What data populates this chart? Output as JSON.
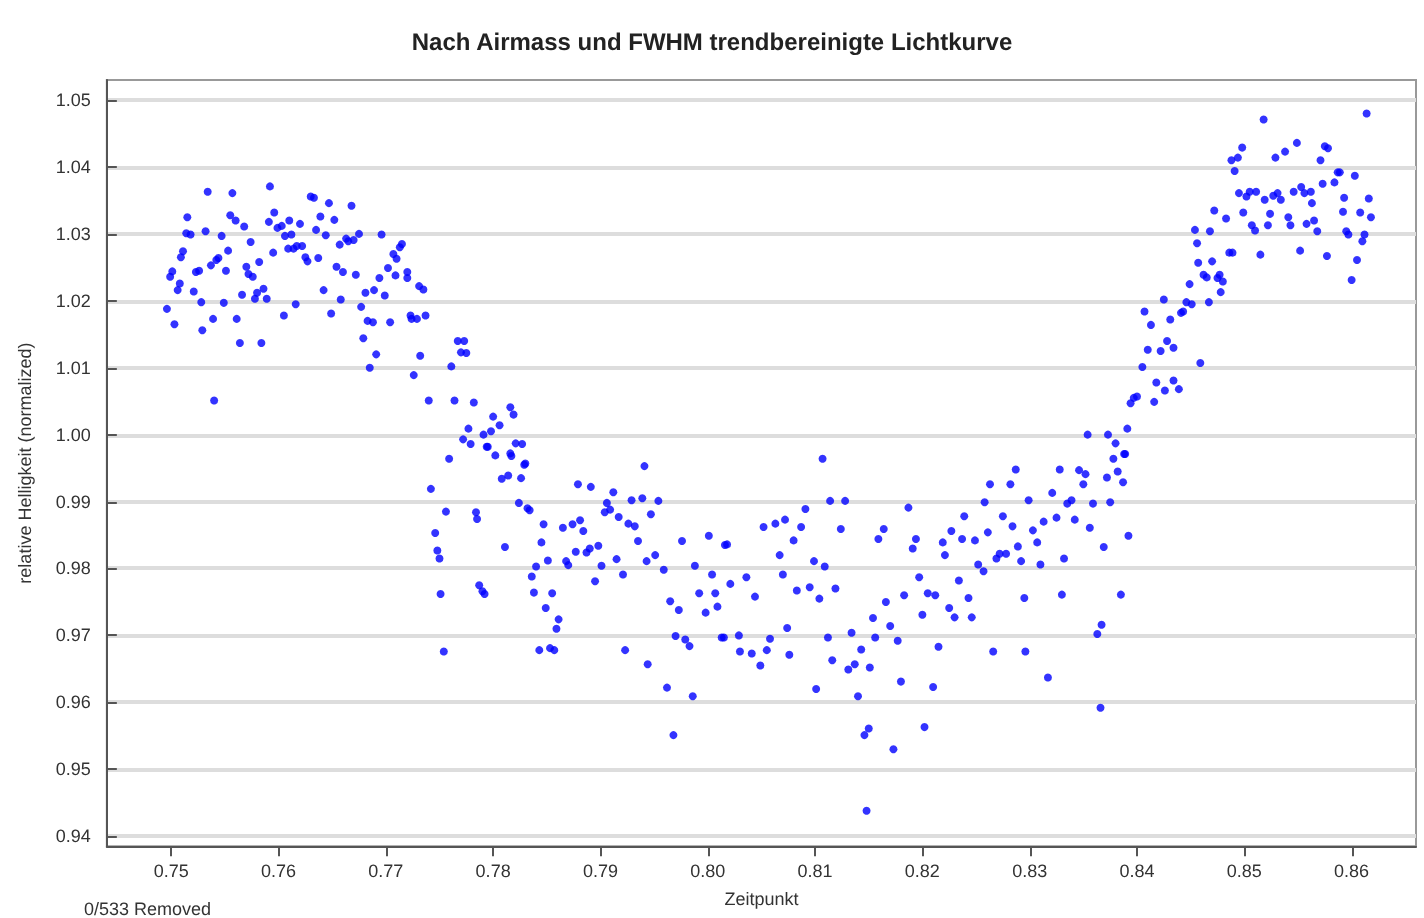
{
  "chart_data": {
    "type": "scatter",
    "title": "Nach Airmass und FWHM trendbereinigte Lichtkurve",
    "xlabel": "Zeitpunkt",
    "ylabel": "relative Helligkeit (normalized)",
    "annotations": [
      "0/533 Removed"
    ],
    "xlim": [
      0.744,
      0.866
    ],
    "ylim": [
      0.9385,
      1.053
    ],
    "xticks": [
      0.75,
      0.76,
      0.77,
      0.78,
      0.79,
      {
        "value": 0.8,
        "label": "0.80"
      },
      0.81,
      0.82,
      0.83,
      0.84,
      0.85,
      0.86
    ],
    "yticks": [
      0.94,
      0.95,
      0.96,
      0.97,
      0.98,
      0.99,
      {
        "value": 1,
        "label": "1.00"
      },
      1.01,
      1.02,
      1.03,
      1.04,
      1.05
    ],
    "grid": "y",
    "marker": "circle",
    "series": [
      {
        "color": "#0000ff",
        "x": [
          0.7496,
          0.7499,
          0.7501,
          0.7503,
          0.7506,
          0.7508,
          0.7509,
          0.7511,
          0.7514,
          0.7515,
          0.7518,
          0.7521,
          0.7523,
          0.7526,
          0.7528,
          0.7529,
          0.7532,
          0.7534,
          0.7537,
          0.7539,
          0.754,
          0.7542,
          0.7544,
          0.7547,
          0.7549,
          0.7551,
          0.7553,
          0.7555,
          0.7557,
          0.756,
          0.7561,
          0.7564,
          0.7566,
          0.7568,
          0.757,
          0.7572,
          0.7574,
          0.7576,
          0.7578,
          0.758,
          0.7582,
          0.7584,
          0.7586,
          0.7589,
          0.7591,
          0.7592,
          0.7595,
          0.7596,
          0.7599,
          0.7603,
          0.7605,
          0.7606,
          0.7609,
          0.761,
          0.7612,
          0.7614,
          0.7616,
          0.7617,
          0.762,
          0.7622,
          0.7625,
          0.7627,
          0.763,
          0.7633,
          0.7635,
          0.7637,
          0.7639,
          0.7642,
          0.7644,
          0.7647,
          0.7649,
          0.7652,
          0.7654,
          0.7657,
          0.7658,
          0.766,
          0.7663,
          0.7665,
          0.7668,
          0.767,
          0.7672,
          0.7675,
          0.7677,
          0.7679,
          0.7681,
          0.7683,
          0.7685,
          0.7688,
          0.7689,
          0.7691,
          0.7694,
          0.7696,
          0.7699,
          0.7702,
          0.7704,
          0.7707,
          0.7709,
          0.771,
          0.7713,
          0.7715,
          0.772,
          0.772,
          0.7723,
          0.7724,
          0.7726,
          0.7729,
          0.7731,
          0.7732,
          0.7735,
          0.7737,
          0.774,
          0.7761,
          0.7767,
          0.777,
          0.7773,
          0.7775,
          0.7764,
          0.7782,
          0.7772,
          0.7777,
          0.7779,
          0.7791,
          0.78,
          0.7806,
          0.7798,
          0.7795,
          0.7819,
          0.7816,
          0.7821,
          0.7827,
          0.7829,
          0.7816,
          0.7742,
          0.7746,
          0.7748,
          0.775,
          0.7751,
          0.7754,
          0.7756,
          0.7759,
          0.7784,
          0.7785,
          0.7787,
          0.779,
          0.7792,
          0.7794,
          0.7802,
          0.7808,
          0.7811,
          0.7814,
          0.7817,
          0.7824,
          0.7826,
          0.783,
          0.7832,
          0.7834,
          0.7836,
          0.7838,
          0.784,
          0.7843,
          0.7845,
          0.7847,
          0.7849,
          0.7851,
          0.7853,
          0.7855,
          0.7857,
          0.7859,
          0.7861,
          0.7865,
          0.7868,
          0.787,
          0.7874,
          0.7877,
          0.7879,
          0.7881,
          0.7884,
          0.7887,
          0.789,
          0.7891,
          0.7895,
          0.7898,
          0.7901,
          0.7904,
          0.7906,
          0.7909,
          0.7912,
          0.7915,
          0.7917,
          0.7921,
          0.7923,
          0.7926,
          0.7929,
          0.7932,
          0.7935,
          0.7939,
          0.7941,
          0.7943,
          0.7944,
          0.7947,
          0.7951,
          0.7954,
          0.7959,
          0.7962,
          0.7965,
          0.7968,
          0.797,
          0.7973,
          0.7976,
          0.7979,
          0.7983,
          0.7986,
          0.7988,
          0.7992,
          0.7998,
          0.8001,
          0.8004,
          0.8007,
          0.8013,
          0.8016,
          0.8021,
          0.8009,
          0.8015,
          0.8018,
          0.8029,
          0.803,
          0.8036,
          0.8041,
          0.8044,
          0.8049,
          0.8052,
          0.8055,
          0.8058,
          0.8063,
          0.8067,
          0.807,
          0.8072,
          0.8074,
          0.8076,
          0.808,
          0.8083,
          0.8087,
          0.8091,
          0.8095,
          0.8099,
          0.8101,
          0.8104,
          0.8107,
          0.8109,
          0.8112,
          0.8114,
          0.8116,
          0.8119,
          0.8124,
          0.8128,
          0.8131,
          0.8134,
          0.8137,
          0.814,
          0.8143,
          0.8146,
          0.8148,
          0.815,
          0.8151,
          0.8154,
          0.8156,
          0.8159,
          0.8164,
          0.8166,
          0.817,
          0.8173,
          0.8177,
          0.818,
          0.8183,
          0.8187,
          0.8191,
          0.8194,
          0.8197,
          0.82,
          0.8202,
          0.8205,
          0.821,
          0.8212,
          0.8215,
          0.8219,
          0.8221,
          0.8225,
          0.8227,
          0.823,
          0.8234,
          0.8237,
          0.8239,
          0.8243,
          0.8246,
          0.8249,
          0.8252,
          0.8257,
          0.8258,
          0.8261,
          0.8263,
          0.8266,
          0.8269,
          0.8272,
          0.8275,
          0.8278,
          0.8282,
          0.8284,
          0.8287,
          0.8289,
          0.8292,
          0.8295,
          0.8296,
          0.8299,
          0.8303,
          0.8307,
          0.831,
          0.8313,
          0.8317,
          0.8321,
          0.8325,
          0.8328,
          0.833,
          0.8332,
          0.8335,
          0.8339,
          0.8342,
          0.8346,
          0.835,
          0.8352,
          0.8356,
          0.8359,
          0.8363,
          0.8366,
          0.8367,
          0.8369,
          0.8372,
          0.8375,
          0.8378,
          0.8382,
          0.8385,
          0.8387,
          0.8389,
          0.8392,
          0.8354,
          0.8373,
          0.838,
          0.8388,
          0.8391,
          0.8394,
          0.8397,
          0.84,
          0.8405,
          0.8407,
          0.841,
          0.8413,
          0.8416,
          0.8418,
          0.8422,
          0.8425,
          0.8426,
          0.8428,
          0.8431,
          0.8434,
          0.8434,
          0.8439,
          0.8441,
          0.8443,
          0.8446,
          0.8449,
          0.8451,
          0.8454,
          0.8456,
          0.8457,
          0.8459,
          0.8462,
          0.8465,
          0.8467,
          0.8468,
          0.847,
          0.8472,
          0.8475,
          0.8477,
          0.8478,
          0.848,
          0.8483,
          0.8486,
          0.8489,
          0.8488,
          0.8491,
          0.8494,
          0.8495,
          0.8498,
          0.8499,
          0.8502,
          0.8505,
          0.8507,
          0.851,
          0.8511,
          0.8515,
          0.8518,
          0.8519,
          0.8522,
          0.8524,
          0.8527,
          0.8529,
          0.8531,
          0.8534,
          0.8538,
          0.8541,
          0.8543,
          0.8546,
          0.8549,
          0.8552,
          0.8553,
          0.8556,
          0.8558,
          0.8562,
          0.8563,
          0.8565,
          0.8568,
          0.8571,
          0.8573,
          0.8575,
          0.8577,
          0.8578,
          0.8584,
          0.8587,
          0.8589,
          0.8592,
          0.8593,
          0.8595,
          0.8597,
          0.86,
          0.8603,
          0.8605,
          0.8608,
          0.861,
          0.8612,
          0.8614,
          0.8616,
          0.8618
        ],
        "values": [
          1.0188,
          1.0236,
          1.0244,
          1.0165,
          1.0216,
          1.0226,
          1.0265,
          1.0274,
          1.0301,
          1.0325,
          1.0299,
          1.0214,
          1.0243,
          1.0245,
          1.0198,
          1.0156,
          1.0304,
          1.0363,
          1.0253,
          1.0173,
          1.0051,
          1.0261,
          1.0264,
          1.0297,
          1.0197,
          1.0245,
          1.0275,
          1.0328,
          1.0361,
          1.032,
          1.0173,
          1.0137,
          1.0209,
          1.0311,
          1.0251,
          1.024,
          1.0288,
          1.0236,
          1.0203,
          1.0212,
          1.0258,
          1.0137,
          1.0218,
          1.0203,
          1.0318,
          1.0371,
          1.0272,
          1.0332,
          1.0309,
          1.0312,
          1.0178,
          1.0297,
          1.0278,
          1.032,
          1.0299,
          1.0278,
          1.0195,
          1.0282,
          1.0315,
          1.0282,
          1.0265,
          1.0259,
          1.0356,
          1.0354,
          1.0306,
          1.0264,
          1.0326,
          1.0216,
          1.0298,
          1.0346,
          1.0181,
          1.0321,
          1.0251,
          1.0284,
          1.0202,
          1.0243,
          1.0293,
          1.0289,
          1.0342,
          1.0291,
          1.0239,
          1.03,
          1.0191,
          1.0144,
          1.0212,
          1.017,
          1.01,
          1.0168,
          1.0216,
          1.012,
          1.0234,
          1.0299,
          1.0208,
          1.0249,
          1.0168,
          1.027,
          1.0238,
          1.0263,
          1.028,
          1.0285,
          1.0234,
          1.0243,
          1.0178,
          1.0173,
          1.0089,
          1.0173,
          1.0222,
          1.0118,
          1.0217,
          1.0178,
          1.0051,
          1.0102,
          1.014,
          1.0123,
          1.014,
          1.0122,
          1.0051,
          1.0048,
          0.9993,
          1.0009,
          0.9986,
          1.0,
          1.0027,
          1.0014,
          1.0005,
          0.9982,
          1.003,
          1.0041,
          0.9987,
          0.9986,
          0.9955,
          0.9972,
          0.9919,
          0.9853,
          0.9827,
          0.9815,
          0.9762,
          0.9676,
          0.9885,
          0.9964,
          0.9884,
          0.9874,
          0.9775,
          0.9766,
          0.9762,
          0.9982,
          0.9969,
          0.9934,
          0.9832,
          0.9939,
          0.9968,
          0.9898,
          0.9935,
          0.9957,
          0.989,
          0.9887,
          0.9788,
          0.9764,
          0.9803,
          0.9678,
          0.9839,
          0.9866,
          0.9741,
          0.9812,
          0.9681,
          0.9763,
          0.9678,
          0.971,
          0.9724,
          0.9861,
          0.9811,
          0.9805,
          0.9866,
          0.9825,
          0.9926,
          0.9872,
          0.9856,
          0.9824,
          0.983,
          0.9922,
          0.9781,
          0.9834,
          0.9804,
          0.9884,
          0.9898,
          0.9888,
          0.9914,
          0.9814,
          0.9877,
          0.9791,
          0.9678,
          0.9867,
          0.9902,
          0.9863,
          0.9841,
          0.9905,
          0.9953,
          0.9811,
          0.9657,
          0.9881,
          0.982,
          0.9901,
          0.9798,
          0.9622,
          0.9751,
          0.9551,
          0.9699,
          0.9738,
          0.9841,
          0.9694,
          0.9684,
          0.9609,
          0.9804,
          0.9763,
          0.9734,
          0.9849,
          0.9791,
          0.9763,
          0.9697,
          0.9835,
          0.9777,
          0.9743,
          0.9697,
          0.9836,
          0.97,
          0.9676,
          0.9787,
          0.9673,
          0.9758,
          0.9655,
          0.9862,
          0.9678,
          0.9695,
          0.9867,
          0.982,
          0.9791,
          0.9873,
          0.9711,
          0.9671,
          0.9842,
          0.9767,
          0.9862,
          0.9889,
          0.9772,
          0.9811,
          0.962,
          0.9755,
          0.9964,
          0.9803,
          0.9697,
          0.9901,
          0.9663,
          0.977,
          0.9859,
          0.9901,
          0.9649,
          0.9704,
          0.9657,
          0.9609,
          0.9679,
          0.9551,
          0.9438,
          0.9561,
          0.9652,
          0.9726,
          0.9697,
          0.9844,
          0.9859,
          0.975,
          0.9714,
          0.953,
          0.9692,
          0.9631,
          0.976,
          0.9891,
          0.983,
          0.9844,
          0.9787,
          0.9731,
          0.9563,
          0.9763,
          0.9623,
          0.976,
          0.9683,
          0.9839,
          0.982,
          0.9741,
          0.9856,
          0.9727,
          0.9782,
          0.9844,
          0.9878,
          0.9756,
          0.9727,
          0.9842,
          0.9806,
          0.9796,
          0.9899,
          0.9854,
          0.9926,
          0.9676,
          0.9815,
          0.9822,
          0.9878,
          0.9822,
          0.9926,
          0.9863,
          0.9948,
          0.9833,
          0.9811,
          0.9756,
          0.9676,
          0.9902,
          0.9857,
          0.9839,
          0.9806,
          0.987,
          0.9637,
          0.9913,
          0.9876,
          0.9948,
          0.9761,
          0.9815,
          0.9897,
          0.9902,
          0.9873,
          0.9947,
          0.9926,
          0.9941,
          0.9861,
          0.9897,
          0.9702,
          0.9592,
          0.9716,
          0.9832,
          0.9936,
          0.9899,
          0.9964,
          0.9945,
          0.9761,
          0.9929,
          0.9971,
          0.9849,
          1.0,
          1.0,
          0.9987,
          0.9971,
          1.0009,
          1.0047,
          1.0055,
          1.0057,
          1.0101,
          1.0184,
          1.0127,
          1.0164,
          1.0049,
          1.0078,
          1.0125,
          1.0202,
          1.0066,
          1.014,
          1.0172,
          1.013,
          1.0081,
          1.0068,
          1.0182,
          1.0184,
          1.0198,
          1.0225,
          1.0195,
          1.0306,
          1.0286,
          1.0257,
          1.0107,
          1.0239,
          1.0235,
          1.0198,
          1.0304,
          1.0259,
          1.0335,
          1.0234,
          1.0239,
          1.0213,
          1.0229,
          1.0323,
          1.0272,
          1.0272,
          1.041,
          1.0394,
          1.0414,
          1.0361,
          1.0429,
          1.0332,
          1.0356,
          1.0363,
          1.0313,
          1.0305,
          1.0363,
          1.0269,
          1.0471,
          1.0351,
          1.0313,
          1.033,
          1.0357,
          1.0414,
          1.0361,
          1.0351,
          1.0423,
          1.0325,
          1.0313,
          1.0363,
          1.0436,
          1.0275,
          1.037,
          1.0361,
          1.0315,
          1.0363,
          1.0346,
          1.032,
          1.0304,
          1.041,
          1.0375,
          1.0431,
          1.0267,
          1.0428,
          1.0377,
          1.0392,
          1.0392,
          1.0333,
          1.0354,
          1.0304,
          1.0299,
          1.0231,
          1.0387,
          1.0261,
          1.0332,
          1.0289,
          1.0299,
          1.048,
          1.0353,
          1.0325
        ]
      }
    ]
  }
}
